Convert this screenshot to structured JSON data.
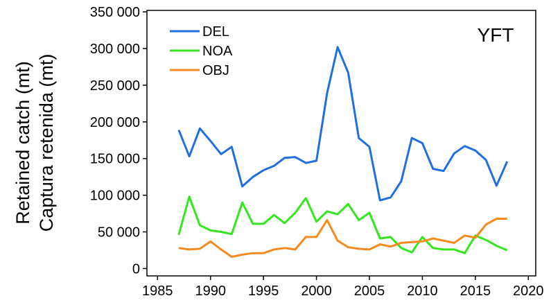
{
  "chart_data": {
    "type": "line",
    "ylabel": [
      "Retained catch (mt)",
      "Captura retenida (mt)"
    ],
    "annotation": "YFT",
    "x": [
      1987,
      1988,
      1989,
      1990,
      1991,
      1992,
      1993,
      1994,
      1995,
      1996,
      1997,
      1998,
      1999,
      2000,
      2001,
      2002,
      2003,
      2004,
      2005,
      2006,
      2007,
      2008,
      2009,
      2010,
      2011,
      2012,
      2013,
      2014,
      2015,
      2016,
      2017,
      2018
    ],
    "series": [
      {
        "name": "DEL",
        "color": "#1f6fe0",
        "values": [
          189000,
          153000,
          191000,
          174000,
          156000,
          166000,
          112000,
          125000,
          134000,
          140000,
          151000,
          152000,
          144000,
          147000,
          239000,
          302000,
          267000,
          178000,
          166000,
          93000,
          97000,
          119000,
          178000,
          171000,
          136000,
          133000,
          157000,
          167000,
          161000,
          148000,
          113000,
          146000
        ]
      },
      {
        "name": "NOA",
        "color": "#33e61e",
        "values": [
          46000,
          98000,
          59000,
          52000,
          50000,
          47000,
          90000,
          61000,
          61000,
          73000,
          62000,
          76000,
          96000,
          64000,
          78000,
          74000,
          88000,
          66000,
          76000,
          41000,
          43000,
          28000,
          22000,
          43000,
          28000,
          26000,
          26000,
          21000,
          45000,
          39000,
          31000,
          25000
        ]
      },
      {
        "name": "OBJ",
        "color": "#f58a1f",
        "values": [
          28000,
          26000,
          27000,
          37000,
          26000,
          16000,
          19000,
          21000,
          21000,
          26000,
          28000,
          26000,
          43000,
          43000,
          66000,
          38000,
          29000,
          27000,
          26000,
          33000,
          30000,
          35000,
          36000,
          37000,
          41000,
          38000,
          35000,
          45000,
          42000,
          60000,
          68000,
          68000
        ]
      }
    ],
    "xlim": [
      1984,
      2020.7
    ],
    "xticks": [
      1985,
      1990,
      1995,
      2000,
      2005,
      2010,
      2015,
      2020
    ],
    "ylim": [
      -10000,
      352000
    ],
    "yticks": [
      0,
      {
        "value": 50000,
        "label": "50 000"
      },
      {
        "value": 100000,
        "label": "100 000"
      },
      {
        "value": 150000,
        "label": "150 000"
      },
      {
        "value": 200000,
        "label": "200 000"
      },
      {
        "value": 250000,
        "label": "250 000"
      },
      {
        "value": 300000,
        "label": "300 000"
      },
      {
        "value": 350000,
        "label": "350 000"
      }
    ],
    "legend": "upper left"
  }
}
